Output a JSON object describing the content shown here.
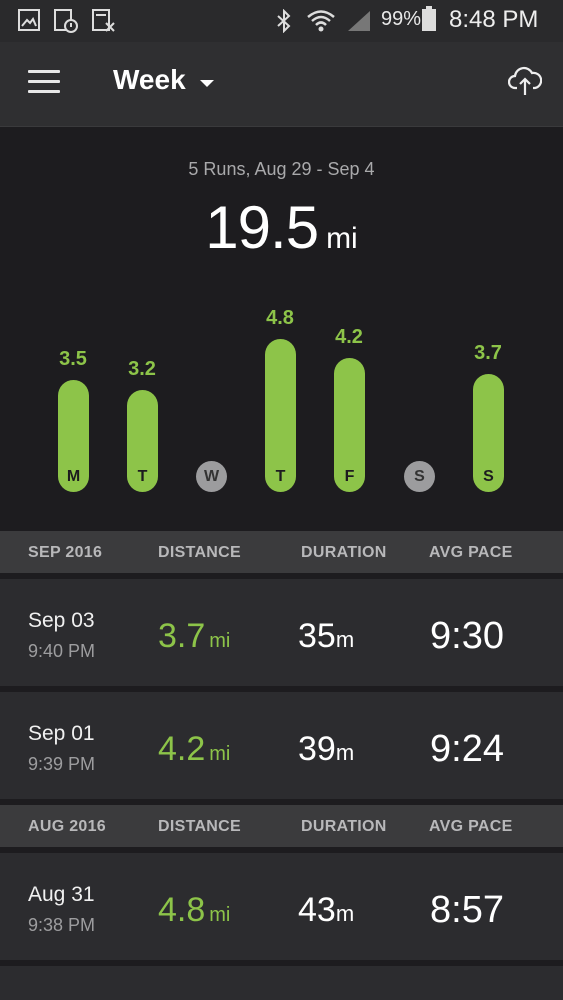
{
  "status_bar": {
    "battery": "99%",
    "time": "8:48 PM",
    "icons": [
      "gallery-icon",
      "calendar-icon",
      "calculator-icon",
      "bluetooth-icon",
      "wifi-icon",
      "signal-icon",
      "battery-icon"
    ]
  },
  "app_bar": {
    "period": "Week",
    "icons": [
      "menu-icon",
      "chevron-down-icon",
      "cloud-upload-icon"
    ]
  },
  "summary": {
    "subtitle": "5 Runs, Aug 29 - Sep 4",
    "total": "19.5",
    "unit": "mi"
  },
  "chart_data": {
    "type": "bar",
    "categories": [
      "M",
      "T",
      "W",
      "T",
      "F",
      "S",
      "S"
    ],
    "values": [
      3.5,
      3.2,
      0,
      4.8,
      4.2,
      0,
      3.7
    ],
    "labels": [
      "3.5",
      "3.2",
      "",
      "4.8",
      "4.2",
      "",
      "3.7"
    ],
    "ylim": [
      0,
      4.8
    ],
    "color": "#8dc449"
  },
  "sections": [
    {
      "month": "SEP 2016",
      "col_distance": "DISTANCE",
      "col_duration": "DURATION",
      "col_pace": "AVG PACE",
      "runs": [
        {
          "date": "Sep 03",
          "time": "9:40 PM",
          "distance": "3.7",
          "distance_unit": "mi",
          "duration": "35",
          "duration_unit": "m",
          "pace": "9:30"
        },
        {
          "date": "Sep 01",
          "time": "9:39 PM",
          "distance": "4.2",
          "distance_unit": "mi",
          "duration": "39",
          "duration_unit": "m",
          "pace": "9:24"
        }
      ]
    },
    {
      "month": "AUG 2016",
      "col_distance": "DISTANCE",
      "col_duration": "DURATION",
      "col_pace": "AVG PACE",
      "runs": [
        {
          "date": "Aug 31",
          "time": "9:38 PM",
          "distance": "4.8",
          "distance_unit": "mi",
          "duration": "43",
          "duration_unit": "m",
          "pace": "8:57"
        }
      ]
    }
  ],
  "colors": {
    "accent": "#8dc449",
    "background": "#1d1c1f",
    "row": "#2c2c2f",
    "header": "#3b3b3d"
  }
}
